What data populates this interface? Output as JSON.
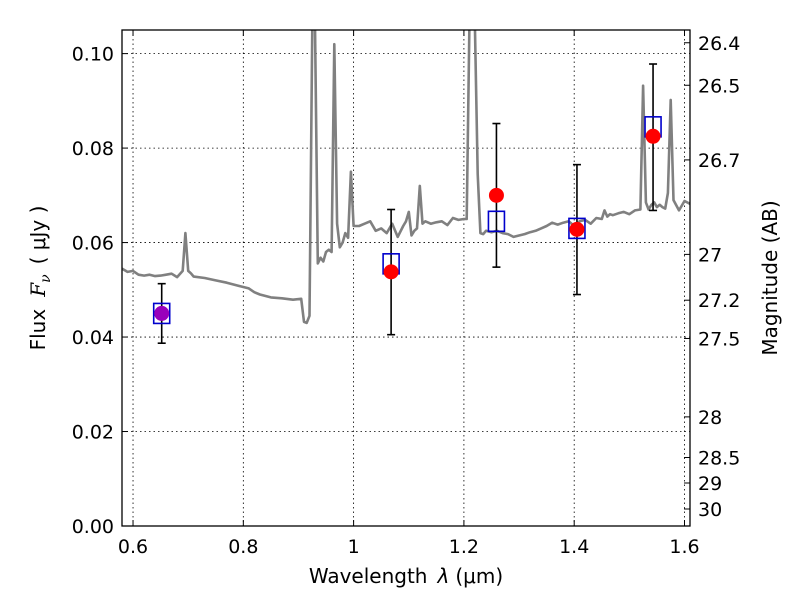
{
  "chart_data": {
    "type": "scatter",
    "title": "",
    "xlabel_prefix": "Wavelength",
    "xlabel_symbol": "λ",
    "xlabel_units": "(μm)",
    "ylabel_prefix": "Flux",
    "ylabel_symbol": "F",
    "ylabel_subscript": "ν",
    "ylabel_units": "( μJy )",
    "y2label": "Magnitude (AB)",
    "xlim": [
      0.58,
      1.61
    ],
    "ylim": [
      0.0,
      0.105
    ],
    "xticks": [
      0.6,
      0.8,
      1.0,
      1.2,
      1.4,
      1.6
    ],
    "xtick_labels": [
      "0.6",
      "0.8",
      "1",
      "1.2",
      "1.4",
      "1.6"
    ],
    "yticks": [
      0.0,
      0.02,
      0.04,
      0.06,
      0.08,
      0.1
    ],
    "ytick_labels": [
      "0.00",
      "0.02",
      "0.04",
      "0.06",
      "0.08",
      "0.10"
    ],
    "y2ticks": [
      {
        "flux": 0.1023,
        "label": "26.4"
      },
      {
        "flux": 0.0933,
        "label": "26.5"
      },
      {
        "flux": 0.0775,
        "label": "26.7"
      },
      {
        "flux": 0.0575,
        "label": "27"
      },
      {
        "flux": 0.0478,
        "label": "27.2"
      },
      {
        "flux": 0.0397,
        "label": "27.5"
      },
      {
        "flux": 0.0231,
        "label": "28"
      },
      {
        "flux": 0.0145,
        "label": "28.5"
      },
      {
        "flux": 0.0091,
        "label": "29"
      },
      {
        "flux": 0.0036,
        "label": "30"
      }
    ],
    "grid": true,
    "colors": {
      "model_line": "#808080",
      "observed_box": "#0000cc",
      "model_point": "#ff0000",
      "model_point_first": "#9900bb",
      "error_bar": "#000000"
    },
    "series": [
      {
        "name": "model spectrum",
        "kind": "line",
        "x": [
          0.58,
          0.59,
          0.6,
          0.61,
          0.62,
          0.63,
          0.64,
          0.65,
          0.66,
          0.67,
          0.68,
          0.69,
          0.695,
          0.7,
          0.705,
          0.71,
          0.73,
          0.75,
          0.77,
          0.79,
          0.81,
          0.82,
          0.83,
          0.85,
          0.87,
          0.89,
          0.905,
          0.91,
          0.915,
          0.92,
          0.925,
          0.927,
          0.93,
          0.935,
          0.94,
          0.945,
          0.95,
          0.955,
          0.96,
          0.965,
          0.97,
          0.975,
          0.98,
          0.985,
          0.99,
          0.995,
          1.0,
          1.01,
          1.02,
          1.03,
          1.04,
          1.05,
          1.06,
          1.07,
          1.08,
          1.09,
          1.095,
          1.1,
          1.105,
          1.11,
          1.115,
          1.12,
          1.125,
          1.13,
          1.14,
          1.15,
          1.16,
          1.17,
          1.18,
          1.19,
          1.2,
          1.205,
          1.21,
          1.215,
          1.22,
          1.225,
          1.23,
          1.235,
          1.24,
          1.25,
          1.26,
          1.27,
          1.28,
          1.29,
          1.3,
          1.31,
          1.32,
          1.33,
          1.34,
          1.35,
          1.36,
          1.37,
          1.38,
          1.39,
          1.4,
          1.41,
          1.42,
          1.43,
          1.44,
          1.45,
          1.455,
          1.46,
          1.465,
          1.47,
          1.48,
          1.49,
          1.5,
          1.51,
          1.52,
          1.525,
          1.53,
          1.535,
          1.54,
          1.545,
          1.55,
          1.555,
          1.56,
          1.565,
          1.57,
          1.575,
          1.58,
          1.59,
          1.6,
          1.61
        ],
        "y": [
          0.0545,
          0.0538,
          0.054,
          0.0532,
          0.053,
          0.0532,
          0.0529,
          0.053,
          0.0532,
          0.0534,
          0.0527,
          0.054,
          0.062,
          0.054,
          0.0535,
          0.0528,
          0.0525,
          0.052,
          0.0515,
          0.0509,
          0.0503,
          0.0495,
          0.049,
          0.0484,
          0.0482,
          0.0479,
          0.0481,
          0.0432,
          0.043,
          0.0445,
          0.106,
          0.106,
          0.106,
          0.0556,
          0.0568,
          0.056,
          0.058,
          0.0585,
          0.058,
          0.102,
          0.064,
          0.059,
          0.06,
          0.062,
          0.061,
          0.075,
          0.0635,
          0.0635,
          0.064,
          0.0645,
          0.0625,
          0.063,
          0.062,
          0.064,
          0.0612,
          0.0635,
          0.0645,
          0.0665,
          0.0615,
          0.0625,
          0.063,
          0.072,
          0.064,
          0.0645,
          0.064,
          0.0643,
          0.0645,
          0.0637,
          0.0652,
          0.0648,
          0.065,
          0.065,
          0.106,
          0.106,
          0.106,
          0.0745,
          0.062,
          0.0618,
          0.0625,
          0.0622,
          0.0625,
          0.062,
          0.0618,
          0.0612,
          0.0615,
          0.0618,
          0.0622,
          0.0625,
          0.063,
          0.0635,
          0.0642,
          0.0638,
          0.0642,
          0.0645,
          0.0635,
          0.0645,
          0.0648,
          0.064,
          0.0652,
          0.065,
          0.0668,
          0.0655,
          0.066,
          0.0658,
          0.0662,
          0.0665,
          0.066,
          0.0668,
          0.067,
          0.0932,
          0.0685,
          0.067,
          0.068,
          0.0685,
          0.0675,
          0.068,
          0.0675,
          0.0672,
          0.0705,
          0.0902,
          0.069,
          0.0668,
          0.0688,
          0.0682
        ]
      },
      {
        "name": "observed photometry",
        "kind": "box-errorbar",
        "x": [
          0.652,
          1.068,
          1.259,
          1.405,
          1.543
        ],
        "y": [
          0.045,
          0.0555,
          0.0645,
          0.063,
          0.0845
        ],
        "yerr_low": [
          0.0387,
          0.0405,
          0.0548,
          0.049,
          0.0668
        ],
        "yerr_high": [
          0.0513,
          0.067,
          0.0852,
          0.0765,
          0.0978
        ]
      },
      {
        "name": "model photometry",
        "kind": "point",
        "x": [
          0.652,
          1.068,
          1.259,
          1.405,
          1.543
        ],
        "y": [
          0.045,
          0.0538,
          0.07,
          0.0628,
          0.0825
        ]
      }
    ]
  }
}
